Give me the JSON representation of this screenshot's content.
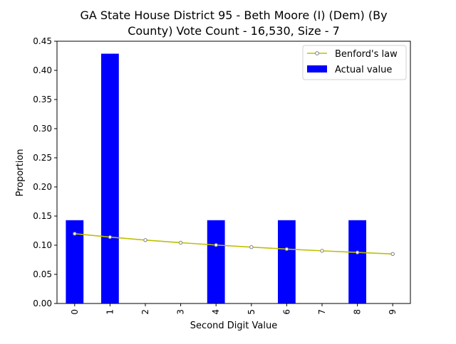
{
  "chart_data": {
    "type": "bar",
    "title_lines": [
      "GA State House District 95 - Beth Moore (I) (Dem) (By",
      "County) Vote Count - 16,530, Size - 7"
    ],
    "xlabel": "Second Digit Value",
    "ylabel": "Proportion",
    "categories": [
      "0",
      "1",
      "2",
      "3",
      "4",
      "5",
      "6",
      "7",
      "8",
      "9"
    ],
    "ylim": [
      0,
      0.45
    ],
    "y_ticks": [
      "0.00",
      "0.05",
      "0.10",
      "0.15",
      "0.20",
      "0.25",
      "0.30",
      "0.35",
      "0.40",
      "0.45"
    ],
    "grid": false,
    "legend_position": "top-right",
    "series": [
      {
        "name": "Benford's law",
        "kind": "line",
        "color": "#bfbf00",
        "marker_color": "#808080",
        "values": [
          0.1197,
          0.1139,
          0.1088,
          0.1043,
          0.1003,
          0.0967,
          0.0934,
          0.0904,
          0.0876,
          0.085
        ]
      },
      {
        "name": "Actual value",
        "kind": "bar",
        "color": "#0000ff",
        "values": [
          0.1429,
          0.4286,
          0,
          0,
          0.1429,
          0,
          0.1429,
          0,
          0.1429,
          0
        ]
      }
    ]
  }
}
